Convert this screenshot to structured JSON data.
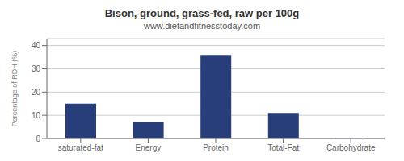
{
  "chart_data": {
    "type": "bar",
    "title": "Bison, ground, grass-fed, raw per 100g",
    "subtitle": "www.dietandfitnesstoday.com",
    "categories": [
      "saturated-fat",
      "Energy",
      "Protein",
      "Total-Fat",
      "Carbohydrate"
    ],
    "values": [
      15,
      7,
      36,
      11,
      0.3
    ],
    "color": "#273E7A",
    "ylabel": "Percentage of RDH (%)",
    "ylim": [
      0,
      43
    ],
    "yticks": [
      0,
      10,
      20,
      30,
      40
    ],
    "grid": true
  }
}
